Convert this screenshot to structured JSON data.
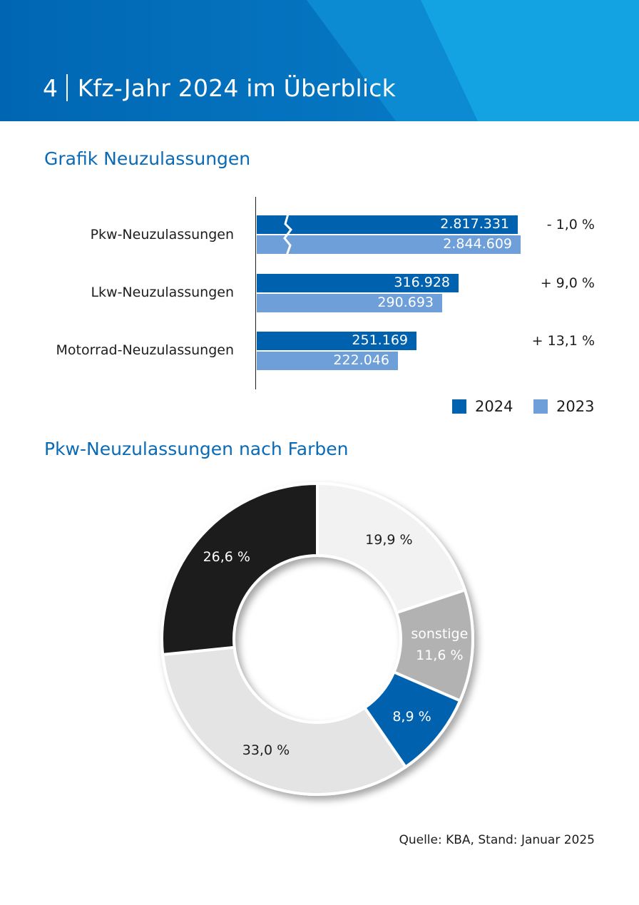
{
  "header": {
    "chapter": "4",
    "title": "Kfz-Jahr 2024 im Überblick"
  },
  "chart_data": [
    {
      "type": "bar",
      "orientation": "horizontal",
      "title": "Grafik Neuzulassungen",
      "categories": [
        "Pkw-Neuzulassungen",
        "Lkw-Neuzulassungen",
        "Motorrad-Neuzulassungen"
      ],
      "series": [
        {
          "name": "2024",
          "values": [
            2817331,
            316928,
            251169
          ],
          "labels": [
            "2.817.331",
            "316.928",
            "251.169"
          ],
          "color": "#0062ae"
        },
        {
          "name": "2023",
          "values": [
            2844609,
            290693,
            222046
          ],
          "labels": [
            "2.844.609",
            "290.693",
            "222.046"
          ],
          "color": "#6f9fd8"
        }
      ],
      "changes": [
        "- 1,0 %",
        "+ 9,0 %",
        "+ 13,1 %"
      ],
      "axis_break": "Pkw-Neuzulassungen",
      "legend": [
        "2024",
        "2023"
      ],
      "legend_position": "bottom-right"
    },
    {
      "type": "pie",
      "subtype": "donut",
      "title": "Pkw-Neuzulassungen nach Farben",
      "slices": [
        {
          "name": "weiß",
          "value": 19.9,
          "label": "19,9 %",
          "color": "#f2f2f2",
          "text_color": "#1d1d1b"
        },
        {
          "name": "sonstige",
          "value": 11.6,
          "caption": "sonstige",
          "label": "11,6 %",
          "color": "#b3b2b2",
          "text_color": "#ffffff"
        },
        {
          "name": "blau",
          "value": 8.9,
          "label": "8,9 %",
          "color": "#0062ae",
          "text_color": "#ffffff"
        },
        {
          "name": "grau/silber",
          "value": 33.0,
          "label": "33,0 %",
          "color": "#e4e4e4",
          "text_color": "#1d1d1b"
        },
        {
          "name": "schwarz",
          "value": 26.6,
          "label": "26,6 %",
          "color": "#1d1d1b",
          "text_color": "#ffffff"
        }
      ]
    }
  ],
  "source": "Quelle: KBA, Stand: Januar 2025",
  "colors": {
    "header": "#0072bc",
    "accent": "#0a6ab5"
  }
}
